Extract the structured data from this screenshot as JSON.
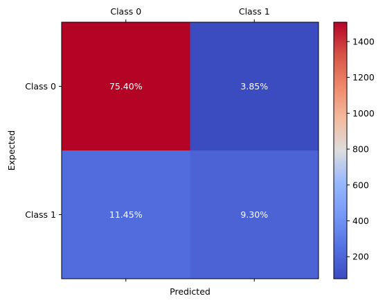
{
  "chart_data": {
    "type": "heatmap",
    "title": "",
    "xlabel": "Predicted",
    "ylabel": "Expected",
    "x_categories": [
      "Class 0",
      "Class 1"
    ],
    "y_categories": [
      "Class 0",
      "Class 1"
    ],
    "values": [
      [
        1508,
        77
      ],
      [
        229,
        186
      ]
    ],
    "cell_labels": [
      [
        "75.40%",
        "3.85%"
      ],
      [
        "11.45%",
        "9.30%"
      ]
    ],
    "colormap": "coolwarm",
    "colorbar": {
      "range": [
        77,
        1508
      ],
      "ticks": [
        200,
        400,
        600,
        800,
        1000,
        1200,
        1400
      ]
    },
    "x_tick_position": "top",
    "grid": false
  }
}
